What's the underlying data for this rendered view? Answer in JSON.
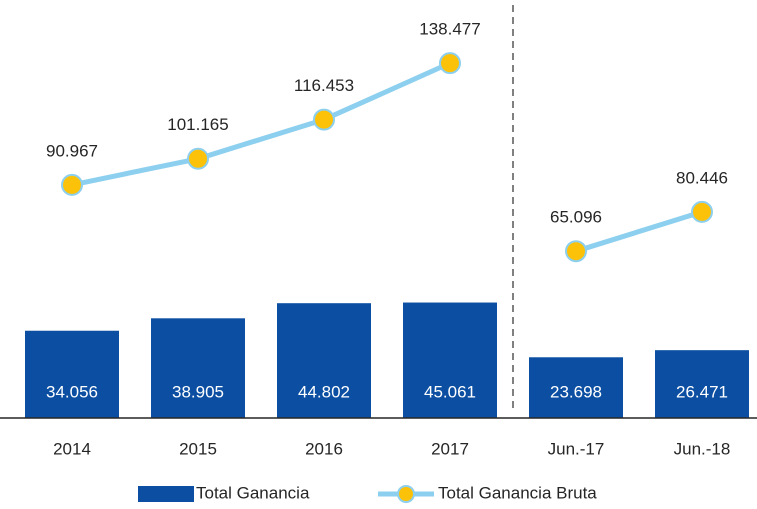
{
  "chart_data": {
    "type": "bar_line",
    "categories": [
      "2014",
      "2015",
      "2016",
      "2017",
      "Jun.-17",
      "Jun.-18"
    ],
    "divider_after": 3,
    "ylim": [
      0,
      160000
    ],
    "series": [
      {
        "name": "Total Ganancia",
        "type": "bar",
        "color": "#0b4ea2",
        "values": [
          34056,
          38905,
          44802,
          45061,
          23698,
          26471
        ],
        "value_labels": [
          "34.056",
          "38.905",
          "44.802",
          "45.061",
          "23.698",
          "26.471"
        ]
      },
      {
        "name": "Total Ganancia Bruta",
        "type": "line",
        "color": "#8ccfee",
        "marker_color": "#fcc20a",
        "values": [
          90967,
          101165,
          116453,
          138477,
          65096,
          80446
        ],
        "value_labels": [
          "90.967",
          "101.165",
          "116.453",
          "138.477",
          "65.096",
          "80.446"
        ]
      }
    ]
  }
}
